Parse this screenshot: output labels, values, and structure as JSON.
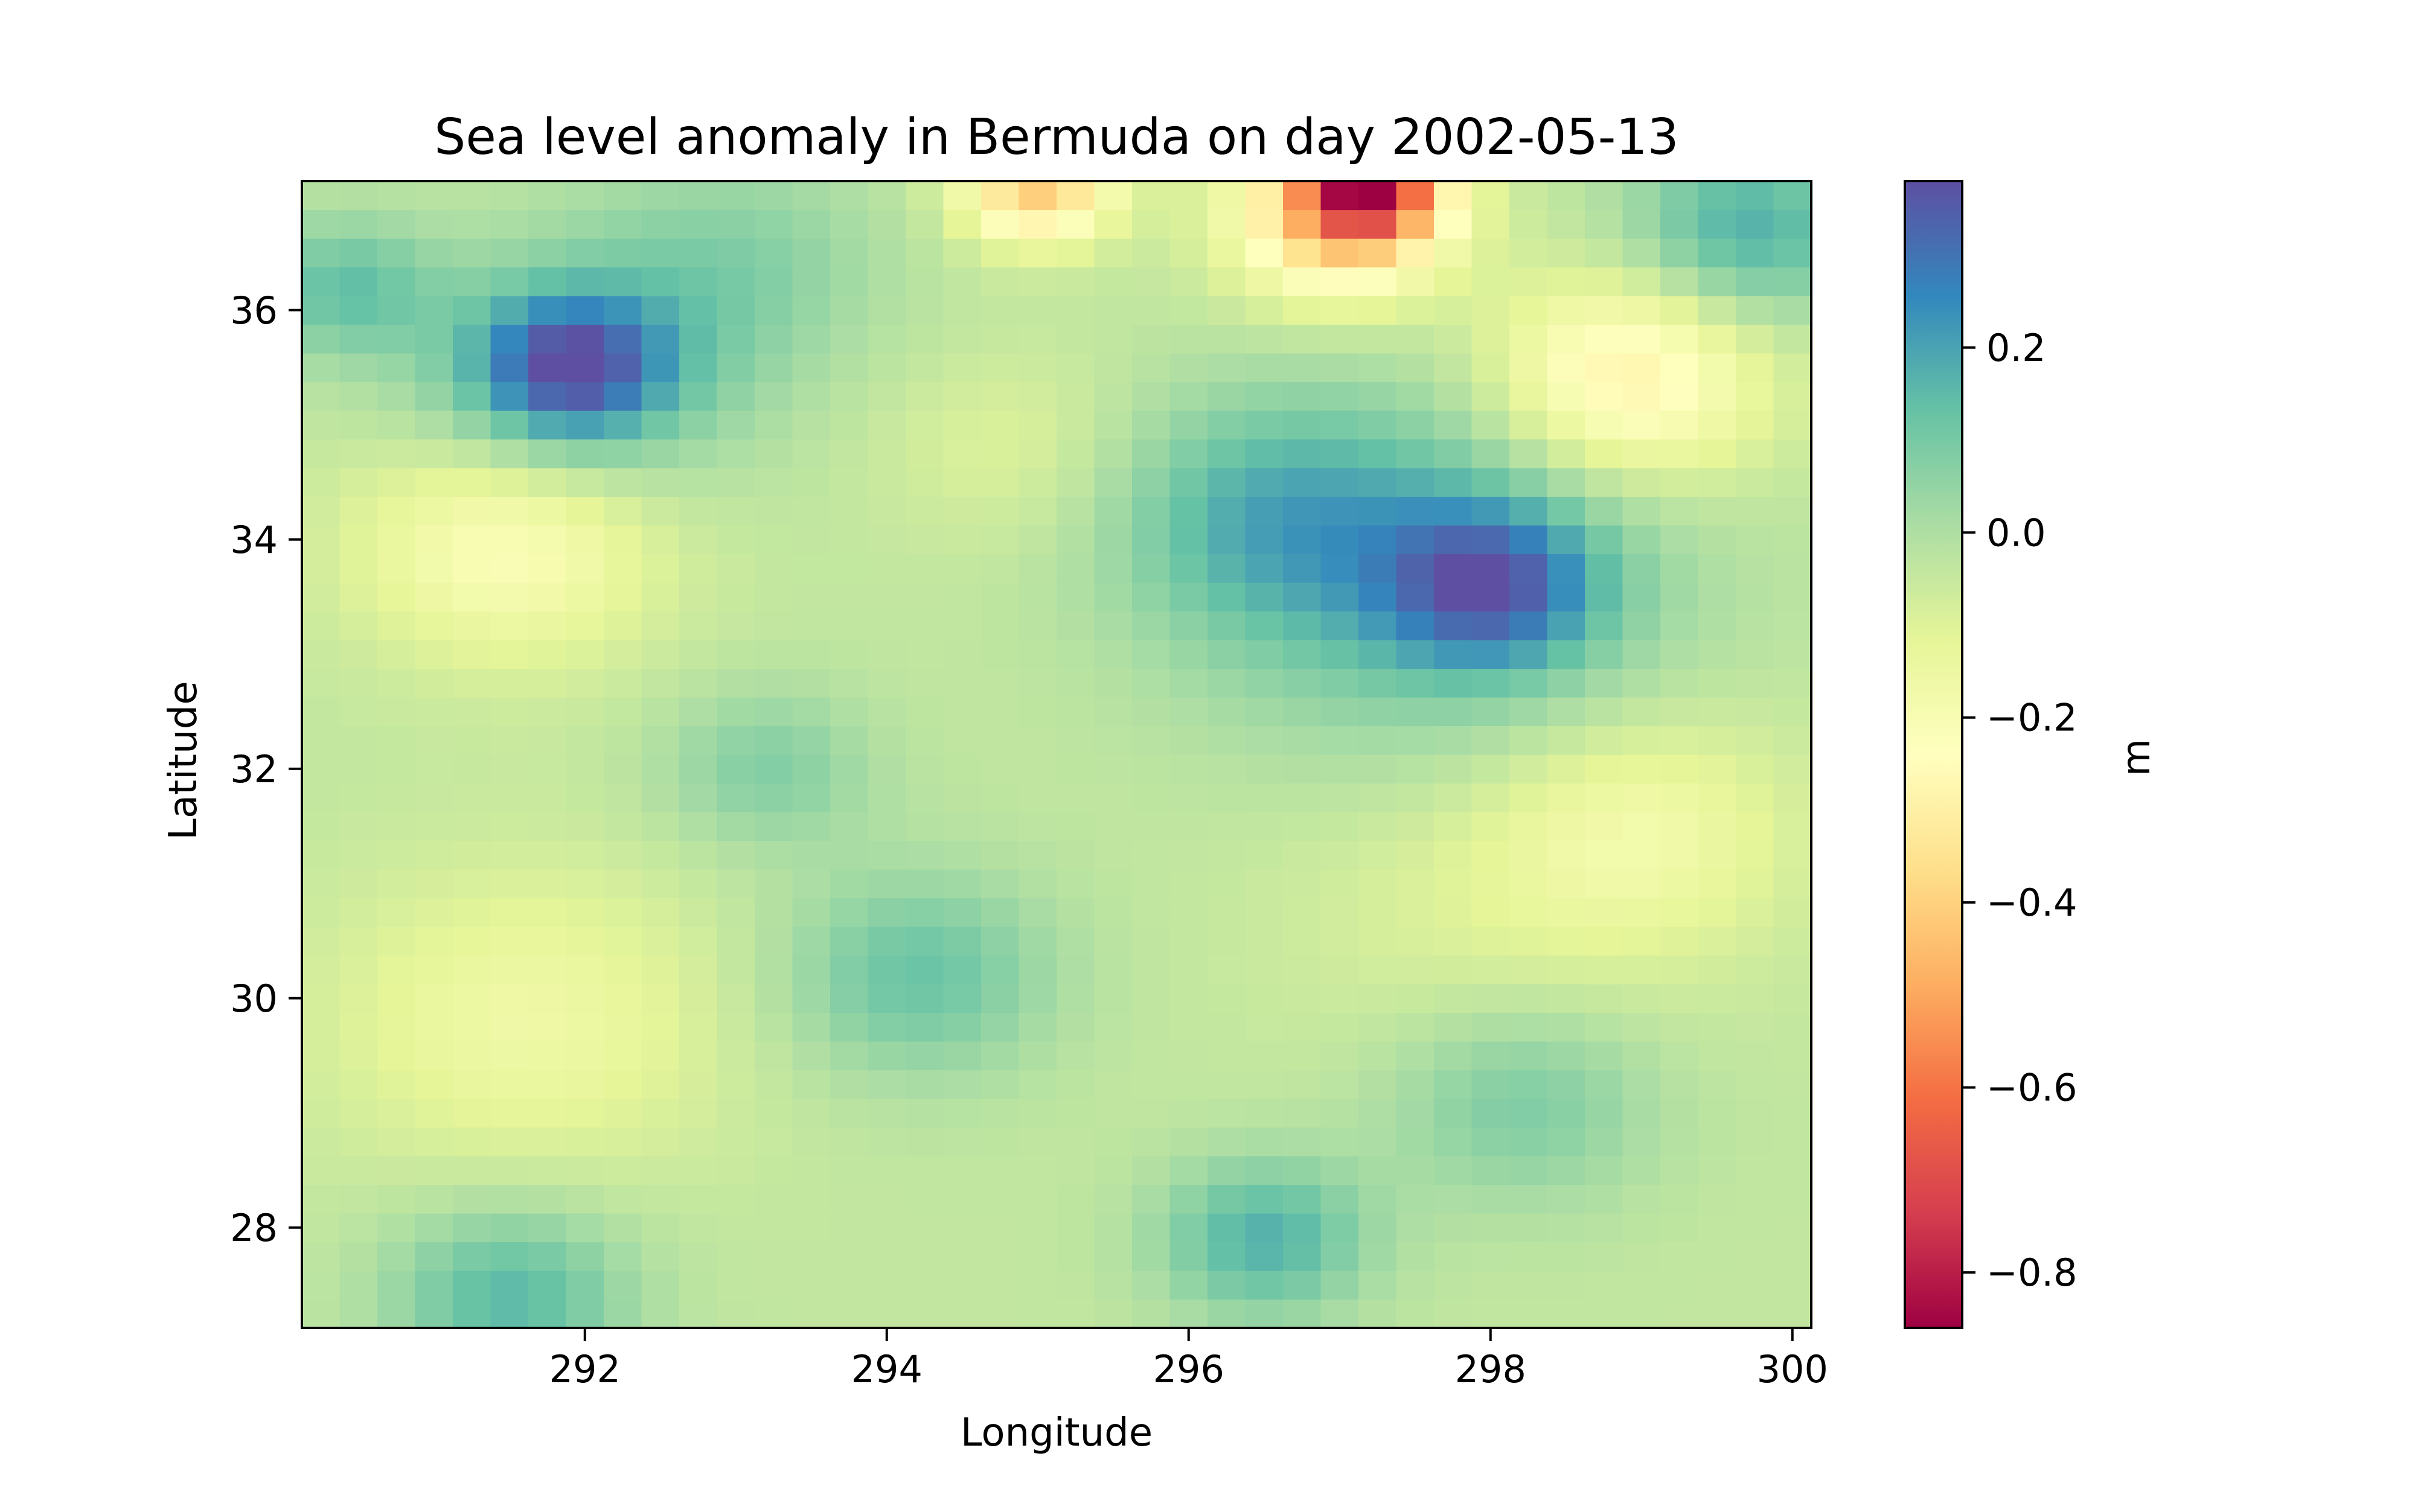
{
  "chart_data": {
    "type": "heatmap",
    "title": "Sea level anomaly in Bermuda on day 2002-05-13",
    "xlabel": "Longitude",
    "ylabel": "Latitude",
    "xlim": [
      290.125,
      300.125
    ],
    "ylim": [
      27.125,
      37.125
    ],
    "grid": false,
    "colormap": "Spectral",
    "colorbar": {
      "label": "m",
      "vmin": -0.86,
      "vmax": 0.38,
      "ticks": [
        -0.8,
        -0.6,
        -0.4,
        -0.2,
        0.0,
        0.2
      ],
      "tick_labels": [
        "−0.8",
        "−0.6",
        "−0.4",
        "−0.2",
        "0.0",
        "0.2"
      ],
      "stops": [
        "#9e0142",
        "#d53e4f",
        "#f46d43",
        "#fdae61",
        "#fee08b",
        "#ffffbf",
        "#e6f598",
        "#abdda4",
        "#66c2a5",
        "#3288bd",
        "#5e4fa2"
      ]
    },
    "x_ticks": [
      292,
      294,
      296,
      298,
      300
    ],
    "x_tick_labels": [
      "292",
      "294",
      "296",
      "298",
      "300"
    ],
    "y_ticks": [
      28,
      30,
      32,
      34,
      36
    ],
    "y_tick_labels": [
      "28",
      "30",
      "32",
      "34",
      "36"
    ],
    "grid_resolution_deg": 0.25,
    "features": [
      {
        "lon": 291.9,
        "lat": 35.5,
        "value": 0.34,
        "radius": 0.6
      },
      {
        "lon": 291.9,
        "lat": 35.4,
        "value": 0.2,
        "radius": 1.1
      },
      {
        "lon": 291.5,
        "lat": 34.0,
        "value": -0.3,
        "radius": 1.0
      },
      {
        "lon": 291.6,
        "lat": 29.8,
        "value": -0.2,
        "radius": 1.3
      },
      {
        "lon": 291.5,
        "lat": 27.4,
        "value": 0.22,
        "radius": 0.8
      },
      {
        "lon": 295.0,
        "lat": 37.1,
        "value": -0.55,
        "radius": 0.5
      },
      {
        "lon": 297.2,
        "lat": 37.1,
        "value": -0.82,
        "radius": 0.45
      },
      {
        "lon": 297.0,
        "lat": 36.8,
        "value": -0.55,
        "radius": 0.7
      },
      {
        "lon": 298.9,
        "lat": 35.4,
        "value": -0.4,
        "radius": 0.9
      },
      {
        "lon": 299.7,
        "lat": 36.7,
        "value": 0.25,
        "radius": 0.8
      },
      {
        "lon": 298.0,
        "lat": 33.6,
        "value": 0.32,
        "radius": 0.7
      },
      {
        "lon": 297.6,
        "lat": 33.7,
        "value": 0.2,
        "radius": 1.6
      },
      {
        "lon": 296.5,
        "lat": 34.2,
        "value": 0.16,
        "radius": 1.0
      },
      {
        "lon": 299.0,
        "lat": 31.5,
        "value": -0.2,
        "radius": 1.0
      },
      {
        "lon": 298.0,
        "lat": 30.8,
        "value": -0.12,
        "radius": 1.4
      },
      {
        "lon": 294.2,
        "lat": 30.2,
        "value": 0.18,
        "radius": 0.9
      },
      {
        "lon": 293.2,
        "lat": 32.0,
        "value": 0.12,
        "radius": 0.7
      },
      {
        "lon": 296.5,
        "lat": 27.9,
        "value": 0.24,
        "radius": 0.7
      },
      {
        "lon": 298.2,
        "lat": 29.1,
        "value": 0.14,
        "radius": 0.9
      },
      {
        "lon": 294.8,
        "lat": 34.8,
        "value": -0.12,
        "radius": 0.8
      },
      {
        "lon": 293.0,
        "lat": 36.4,
        "value": 0.1,
        "radius": 1.0
      },
      {
        "lon": 290.4,
        "lat": 36.2,
        "value": 0.18,
        "radius": 0.6
      }
    ]
  }
}
